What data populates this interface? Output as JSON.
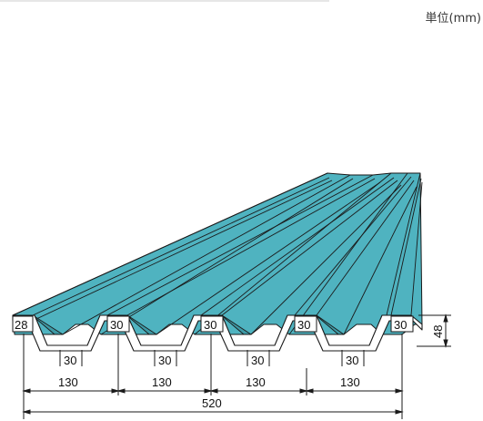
{
  "unit_label": "単位(mm)",
  "dimensions": {
    "top_width": "28",
    "crest_widths": [
      "30",
      "30",
      "30",
      "30"
    ],
    "bottom_widths": [
      "30",
      "30",
      "30",
      "30"
    ],
    "pitches": [
      "130",
      "130",
      "130",
      "130"
    ],
    "total_width": "520",
    "height": "48"
  },
  "colors": {
    "sheet": "#4fb3c0",
    "sheet_dark": "#3e9aa6",
    "outline": "#1a1a1a"
  }
}
